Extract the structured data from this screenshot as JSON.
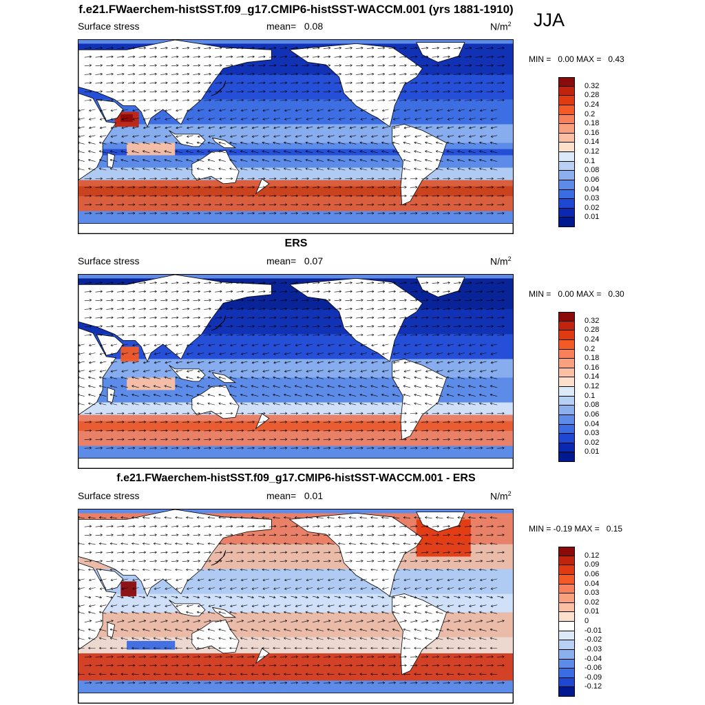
{
  "figure": {
    "title": "f.e21.FWaerchem-histSST.f09_g17.CMIP6-histSST-WACCM.001 (yrs 1881-1910)",
    "season": "JJA"
  },
  "panels": [
    {
      "title": "",
      "left_label": "Surface stress",
      "mean_label": "mean=   0.08",
      "unit_base": "N/m",
      "unit_sup": "2",
      "minmax": "MIN =   0.00 MAX =   0.43",
      "colorbar": {
        "labels": [
          "0.32",
          "0.28",
          "0.24",
          "0.2",
          "0.18",
          "0.16",
          "0.14",
          "0.12",
          "0.1",
          "0.08",
          "0.06",
          "0.04",
          "0.03",
          "0.02",
          "0.01"
        ],
        "colors": [
          "#8b0a0a",
          "#c0240e",
          "#e03a12",
          "#f45a26",
          "#f8805a",
          "#f9a07e",
          "#fbc0a3",
          "#fde0cc",
          "#dbe9f9",
          "#b8d0f4",
          "#8cb0ee",
          "#5d8ce8",
          "#3a6ce2",
          "#1e48d4",
          "#0a28b0",
          "#001890"
        ]
      },
      "fields": [
        {
          "type": "band",
          "lat": [
            -60,
            -35
          ],
          "color": "#e85a2c"
        },
        {
          "type": "band",
          "lat": [
            -48,
            -40
          ],
          "color": "#c8401c"
        },
        {
          "type": "band",
          "lat": [
            -35,
            -25
          ],
          "color": "#b8d0f4"
        },
        {
          "type": "band",
          "lat": [
            -25,
            -5
          ],
          "color": "#5d8ce8"
        },
        {
          "type": "band",
          "lat": [
            -15,
            -10
          ],
          "color": "#1e48d4"
        },
        {
          "type": "band",
          "lat": [
            -5,
            10
          ],
          "color": "#8cb0ee"
        },
        {
          "type": "band",
          "lat": [
            10,
            30
          ],
          "color": "#3a6ce2"
        },
        {
          "type": "band",
          "lat": [
            30,
            50
          ],
          "color": "#1e48d4"
        },
        {
          "type": "band",
          "lat": [
            50,
            75
          ],
          "color": "#0a28b0"
        },
        {
          "type": "patch",
          "lon": [
            50,
            70
          ],
          "lat": [
            8,
            20
          ],
          "color": "#c0240e"
        },
        {
          "type": "patch",
          "lon": [
            55,
            65
          ],
          "lat": [
            12,
            18
          ],
          "color": "#8b0a0a"
        },
        {
          "type": "patch",
          "lon": [
            60,
            100
          ],
          "lat": [
            -15,
            -5
          ],
          "color": "#fbc0a3"
        }
      ],
      "arrows": "westerly"
    },
    {
      "title": "ERS",
      "left_label": "Surface stress",
      "mean_label": "mean=   0.07",
      "unit_base": "N/m",
      "unit_sup": "2",
      "minmax": "MIN =   0.00 MAX =   0.30",
      "colorbar": {
        "labels": [
          "0.32",
          "0.28",
          "0.24",
          "0.2",
          "0.18",
          "0.16",
          "0.14",
          "0.12",
          "0.1",
          "0.08",
          "0.06",
          "0.04",
          "0.03",
          "0.02",
          "0.01"
        ],
        "colors": [
          "#8b0a0a",
          "#c0240e",
          "#e03a12",
          "#f45a26",
          "#f8805a",
          "#f9a07e",
          "#fbc0a3",
          "#fde0cc",
          "#dbe9f9",
          "#b8d0f4",
          "#8cb0ee",
          "#5d8ce8",
          "#3a6ce2",
          "#1e48d4",
          "#0a28b0",
          "#001890"
        ]
      },
      "fields": [
        {
          "type": "band",
          "lat": [
            -60,
            -35
          ],
          "color": "#f8805a"
        },
        {
          "type": "band",
          "lat": [
            -48,
            -40
          ],
          "color": "#e85a2c"
        },
        {
          "type": "band",
          "lat": [
            -35,
            -25
          ],
          "color": "#dbe9f9"
        },
        {
          "type": "band",
          "lat": [
            -25,
            -5
          ],
          "color": "#5d8ce8"
        },
        {
          "type": "band",
          "lat": [
            -5,
            10
          ],
          "color": "#8cb0ee"
        },
        {
          "type": "band",
          "lat": [
            10,
            30
          ],
          "color": "#1e48d4"
        },
        {
          "type": "band",
          "lat": [
            30,
            50
          ],
          "color": "#0a28b0"
        },
        {
          "type": "band",
          "lat": [
            50,
            75
          ],
          "color": "#001890"
        },
        {
          "type": "patch",
          "lon": [
            55,
            70
          ],
          "lat": [
            8,
            20
          ],
          "color": "#f45a26"
        },
        {
          "type": "patch",
          "lon": [
            60,
            100
          ],
          "lat": [
            -15,
            -5
          ],
          "color": "#fbc0a3"
        }
      ],
      "arrows": "westerly"
    },
    {
      "title": "f.e21.FWaerchem-histSST.f09_g17.CMIP6-histSST-WACCM.001 - ERS",
      "left_label": "Surface stress",
      "mean_label": "mean=   0.01",
      "unit_base": "N/m",
      "unit_sup": "2",
      "minmax": "MIN = -0.19 MAX =   0.15",
      "colorbar": {
        "labels": [
          "0.12",
          "0.09",
          "0.06",
          "0.04",
          "0.03",
          "0.02",
          "0.01",
          "0",
          "-0.01",
          "-0.02",
          "-0.03",
          "-0.04",
          "-0.06",
          "-0.09",
          "-0.12"
        ],
        "colors": [
          "#8b0a0a",
          "#c0240e",
          "#e03a12",
          "#f45a26",
          "#f8805a",
          "#f9a07e",
          "#fbc0a3",
          "#fde0cc",
          "#ffffff",
          "#dbe9f9",
          "#b8d0f4",
          "#8cb0ee",
          "#5d8ce8",
          "#3a6ce2",
          "#1e48d4",
          "#001890"
        ]
      },
      "fields": [
        {
          "type": "band",
          "lat": [
            -60,
            -38
          ],
          "color": "#e03a12"
        },
        {
          "type": "band",
          "lat": [
            -38,
            -25
          ],
          "color": "#fde0cc"
        },
        {
          "type": "band",
          "lat": [
            -25,
            -5
          ],
          "color": "#fbc0a3"
        },
        {
          "type": "band",
          "lat": [
            -5,
            10
          ],
          "color": "#dbe9f9"
        },
        {
          "type": "band",
          "lat": [
            10,
            30
          ],
          "color": "#b8d0f4"
        },
        {
          "type": "band",
          "lat": [
            30,
            50
          ],
          "color": "#fbc0a3"
        },
        {
          "type": "band",
          "lat": [
            50,
            75
          ],
          "color": "#f8805a"
        },
        {
          "type": "patch",
          "lon": [
            55,
            68
          ],
          "lat": [
            8,
            20
          ],
          "color": "#8b0a0a"
        },
        {
          "type": "patch",
          "lon": [
            60,
            100
          ],
          "lat": [
            -35,
            -28
          ],
          "color": "#3a6ce2"
        },
        {
          "type": "patch",
          "lon": [
            300,
            345
          ],
          "lat": [
            40,
            70
          ],
          "color": "#e03a12"
        }
      ],
      "arrows": "mixed"
    }
  ]
}
